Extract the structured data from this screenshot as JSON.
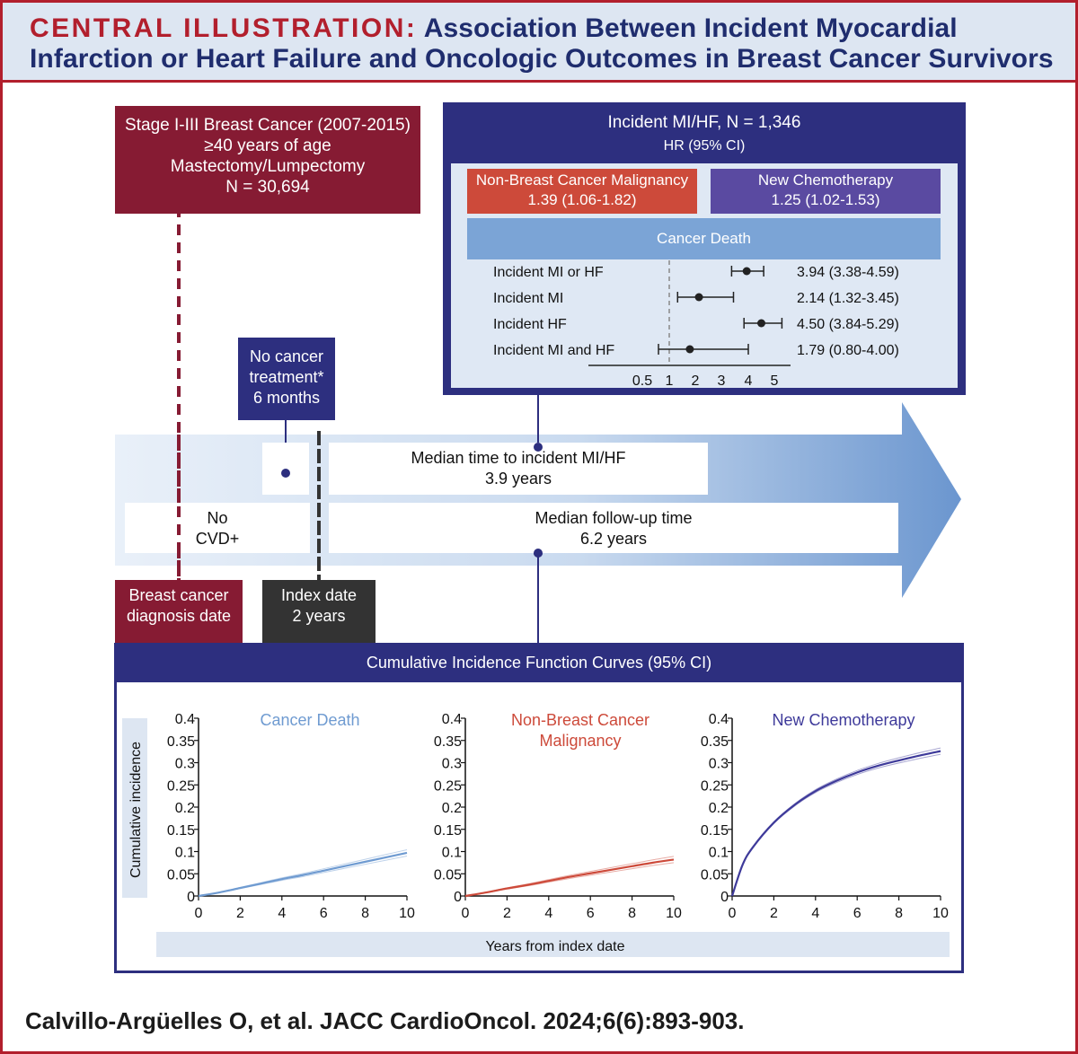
{
  "header": {
    "label": "CENTRAL ILLUSTRATION:",
    "title_line1": "Association Between Incident Myocardial",
    "title_line2": "Infarction or Heart Failure and Oncologic Outcomes in Breast Cancer Survivors"
  },
  "cohort": {
    "line1": "Stage I-III Breast Cancer (2007-2015)",
    "line2": "≥40 years of age",
    "line3": "Mastectomy/Lumpectomy",
    "line4": "N = 30,694"
  },
  "incident": {
    "title": "Incident MI/HF, N = 1,346",
    "subtitle": "HR (95% CI)",
    "nbcm_label": "Non-Breast Cancer Malignancy",
    "nbcm_value": "1.39 (1.06-1.82)",
    "chemo_label": "New Chemotherapy",
    "chemo_value": "1.25 (1.02-1.53)",
    "cancer_death_label": "Cancer Death"
  },
  "forest": {
    "rows": [
      {
        "label": "Incident MI or HF",
        "hr": 3.94,
        "lo": 3.38,
        "hi": 4.59,
        "text": "3.94 (3.38-4.59)"
      },
      {
        "label": "Incident MI",
        "hr": 2.14,
        "lo": 1.32,
        "hi": 3.45,
        "text": "2.14 (1.32-3.45)"
      },
      {
        "label": "Incident HF",
        "hr": 4.5,
        "lo": 3.84,
        "hi": 5.29,
        "text": "4.50 (3.84-5.29)"
      },
      {
        "label": "Incident MI and HF",
        "hr": 1.79,
        "lo": 0.8,
        "hi": 4.0,
        "text": "1.79 (0.80-4.00)"
      }
    ],
    "ticks": [
      0.5,
      1,
      2,
      3,
      4,
      5
    ],
    "tick_labels": [
      "0.5",
      "1",
      "2",
      "3",
      "4",
      "5"
    ],
    "reference": 1
  },
  "timeline": {
    "no_treatment_line1": "No cancer",
    "no_treatment_line2": "treatment*",
    "no_treatment_line3": "6 months",
    "median_time_line1": "Median time to incident MI/HF",
    "median_time_line2": "3.9 years",
    "no_cvd_line1": "No",
    "no_cvd_line2": "CVD+",
    "followup_line1": "Median follow-up time",
    "followup_line2": "6.2 years",
    "diagnosis_line1": "Breast cancer",
    "diagnosis_line2": "diagnosis date",
    "index_line1": "Index date",
    "index_line2": "2 years"
  },
  "cif": {
    "title": "Cumulative Incidence Function Curves (95% CI)",
    "ylabel": "Cumulative incidence",
    "xlabel": "Years from index date"
  },
  "colors": {
    "maroon": "#861b33",
    "navy": "#2d2f7f",
    "header_red": "#b21f2d",
    "light_blue": "#7ba4d6",
    "nbcm_red": "#cd4a3a",
    "chemo_purple": "#5a4aa1",
    "death_blue": "#6f9bd1"
  },
  "chart_data": [
    {
      "type": "line",
      "title": "Cancer Death",
      "color": "#6f9bd1",
      "x": [
        0,
        1,
        2,
        3,
        4,
        5,
        6,
        7,
        8,
        9,
        10
      ],
      "series": [
        {
          "values": [
            0,
            0.008,
            0.018,
            0.028,
            0.038,
            0.047,
            0.057,
            0.067,
            0.077,
            0.087,
            0.097
          ]
        }
      ],
      "xlim": [
        0,
        10
      ],
      "ylim": [
        0,
        0.4
      ],
      "xticks": [
        "0",
        "2",
        "4",
        "6",
        "8",
        "10"
      ],
      "yticks": [
        "0",
        "0.05",
        "0.1",
        "0.15",
        "0.2",
        "0.25",
        "0.3",
        "0.35",
        "0.4"
      ],
      "ylabel": "Cumulative incidence",
      "xlabel": "Years from index date"
    },
    {
      "type": "line",
      "title": "Non-Breast Cancer Malignancy",
      "title_line1": "Non-Breast Cancer",
      "title_line2": "Malignancy",
      "color": "#cd4a3a",
      "x": [
        0,
        1,
        2,
        3,
        4,
        5,
        6,
        7,
        8,
        9,
        10
      ],
      "series": [
        {
          "values": [
            0,
            0.008,
            0.017,
            0.025,
            0.034,
            0.043,
            0.051,
            0.059,
            0.067,
            0.075,
            0.082
          ]
        }
      ],
      "xlim": [
        0,
        10
      ],
      "ylim": [
        0,
        0.4
      ],
      "xticks": [
        "0",
        "2",
        "4",
        "6",
        "8",
        "10"
      ],
      "yticks": [
        "0",
        "0.05",
        "0.1",
        "0.15",
        "0.2",
        "0.25",
        "0.3",
        "0.35",
        "0.4"
      ],
      "xlabel": "Years from index date"
    },
    {
      "type": "line",
      "title": "New Chemotherapy",
      "color": "#3e3a9a",
      "x": [
        0,
        0.5,
        1,
        2,
        3,
        4,
        5,
        6,
        7,
        8,
        9,
        10
      ],
      "series": [
        {
          "values": [
            0,
            0.07,
            0.11,
            0.165,
            0.205,
            0.236,
            0.259,
            0.278,
            0.293,
            0.305,
            0.316,
            0.326
          ]
        }
      ],
      "xlim": [
        0,
        10
      ],
      "ylim": [
        0,
        0.4
      ],
      "xticks": [
        "0",
        "2",
        "4",
        "6",
        "8",
        "10"
      ],
      "yticks": [
        "0",
        "0.05",
        "0.1",
        "0.15",
        "0.2",
        "0.25",
        "0.3",
        "0.35",
        "0.4"
      ],
      "xlabel": "Years from index date"
    }
  ]
}
